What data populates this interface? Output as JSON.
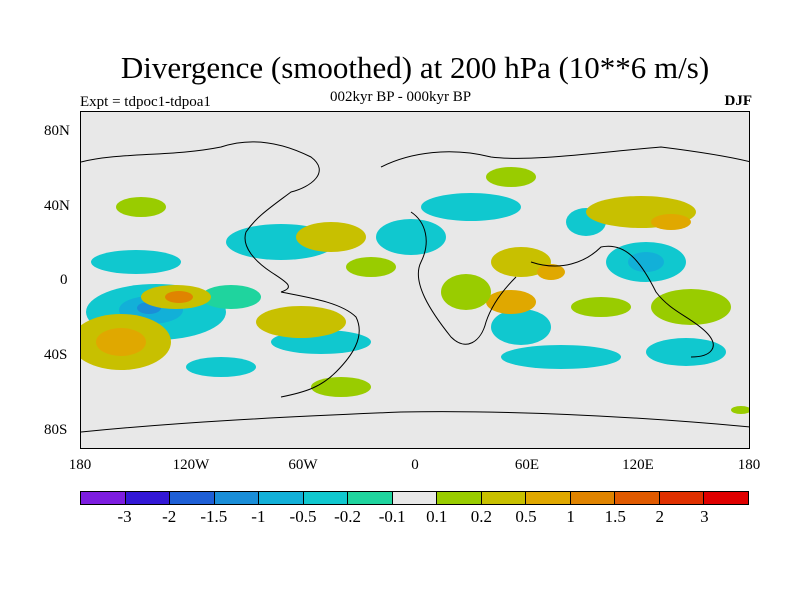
{
  "header": {
    "title": "Divergence (smoothed) at 200 hPa (10**6 m/s)",
    "experiment": "Expt = tdpoc1-tdpoa1",
    "period": "002kyr BP - 000kyr BP",
    "season": "DJF"
  },
  "axes": {
    "lat_labels": [
      "80N",
      "40N",
      "0",
      "40S",
      "80S"
    ],
    "lon_labels": [
      "180",
      "120W",
      "60W",
      "0",
      "60E",
      "120E",
      "180"
    ]
  },
  "colorbar": {
    "labels": [
      "-3",
      "-2",
      "-1.5",
      "-1",
      "-0.5",
      "-0.2",
      "-0.1",
      "0.1",
      "0.2",
      "0.5",
      "1",
      "1.5",
      "2",
      "3"
    ],
    "colors": [
      "#7d1de0",
      "#3318d6",
      "#1e5fd6",
      "#1a8ed8",
      "#12b0d8",
      "#10c8cf",
      "#1fd49e",
      "#e8e8e8",
      "#99cc00",
      "#c8c000",
      "#e0a800",
      "#e08400",
      "#e05a00",
      "#e03000",
      "#e00000"
    ]
  },
  "map_colors": {
    "background": "#e8e8e8",
    "coast": "#000000"
  }
}
